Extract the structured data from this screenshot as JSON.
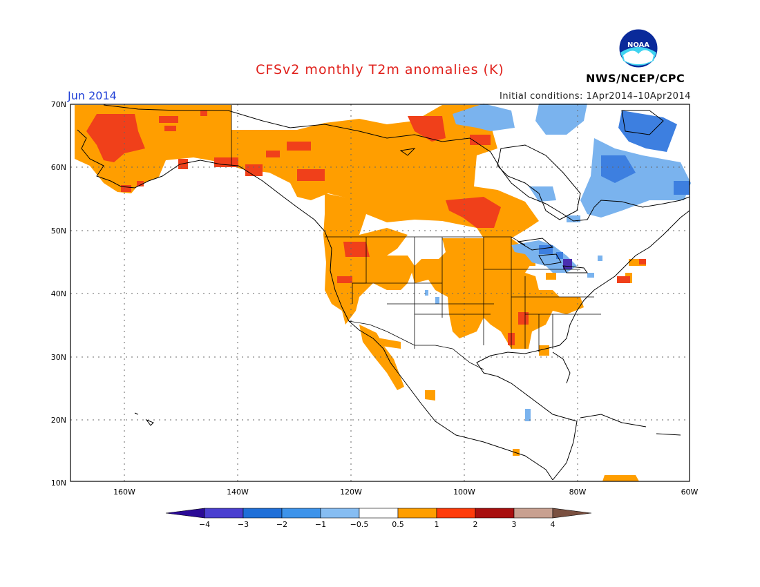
{
  "title": "CFSv2 monthly T2m anomalies (K)",
  "valid_month": "Jun 2014",
  "initial_conditions": "Initial conditions: 1Apr2014–10Apr2014",
  "agency": "NWS/NCEP/CPC",
  "logo_text": "NOAA",
  "lat_labels": [
    "70N",
    "60N",
    "50N",
    "40N",
    "30N",
    "20N",
    "10N"
  ],
  "lon_labels": [
    "160W",
    "140W",
    "120W",
    "100W",
    "80W",
    "60W"
  ],
  "colorbar": {
    "labels": [
      "−4",
      "−3",
      "−2",
      "−1",
      "−0.5",
      "0.5",
      "1",
      "2",
      "3",
      "4"
    ],
    "colors": [
      "#2a0a96",
      "#4a3fd0",
      "#1f6fd8",
      "#3d93ea",
      "#86bdf2",
      "#ffffff",
      "#ff9e00",
      "#ff3b0a",
      "#a80f0f",
      "#c8a090",
      "#7a5040"
    ]
  },
  "region_colors": {
    "warm_light": "#ff9e00",
    "warm_strong": "#f0401a",
    "cool_light": "#7ab3ee",
    "cool_strong": "#3d7fe0",
    "cool_extreme": "#4a2fb0"
  }
}
